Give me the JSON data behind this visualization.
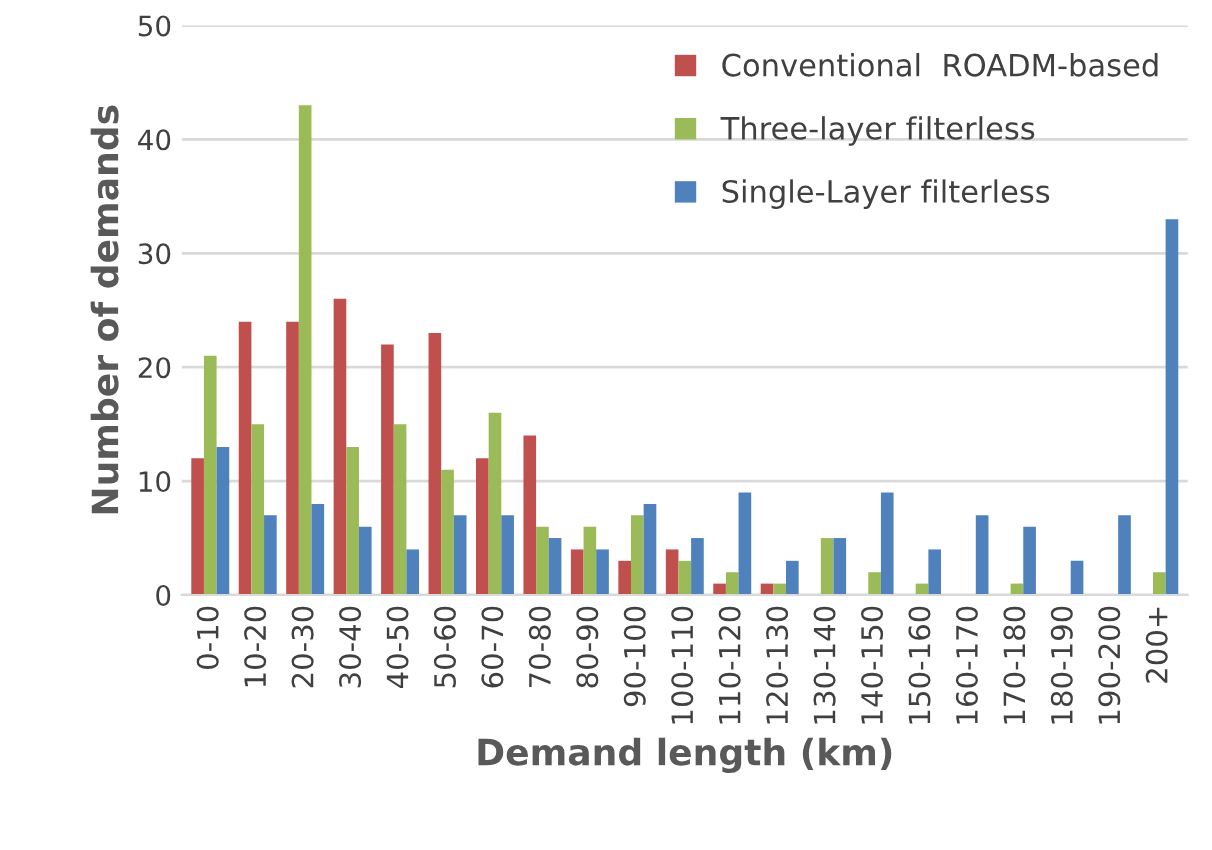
{
  "chart_data": {
    "type": "bar",
    "xlabel": "Demand length (km)",
    "ylabel": "Number of demands",
    "categories": [
      "0-10",
      "10-20",
      "20-30",
      "30-40",
      "40-50",
      "50-60",
      "60-70",
      "70-80",
      "80-90",
      "90-100",
      "100-110",
      "110-120",
      "120-130",
      "130-140",
      "140-150",
      "150-160",
      "160-170",
      "170-180",
      "180-190",
      "190-200",
      "200+"
    ],
    "series": [
      {
        "name": "Conventional  ROADM-based",
        "color": "#c0504d",
        "values": [
          12,
          24,
          24,
          26,
          22,
          23,
          12,
          14,
          4,
          3,
          4,
          1,
          1,
          0,
          0,
          0,
          0,
          0,
          0,
          0,
          0
        ]
      },
      {
        "name": "Three-layer filterless",
        "color": "#9bbb59",
        "values": [
          21,
          15,
          43,
          13,
          15,
          11,
          16,
          6,
          6,
          7,
          3,
          2,
          1,
          5,
          2,
          1,
          0,
          1,
          0,
          0,
          2
        ]
      },
      {
        "name": "Single-Layer filterless",
        "color": "#4f81bd",
        "values": [
          13,
          7,
          8,
          6,
          4,
          7,
          7,
          5,
          4,
          8,
          5,
          9,
          3,
          5,
          9,
          4,
          7,
          6,
          3,
          7,
          33
        ]
      }
    ],
    "ylim": [
      0,
      50
    ],
    "yticks": [
      0,
      10,
      20,
      30,
      40,
      50
    ],
    "grid": "y",
    "legend": "top right"
  }
}
